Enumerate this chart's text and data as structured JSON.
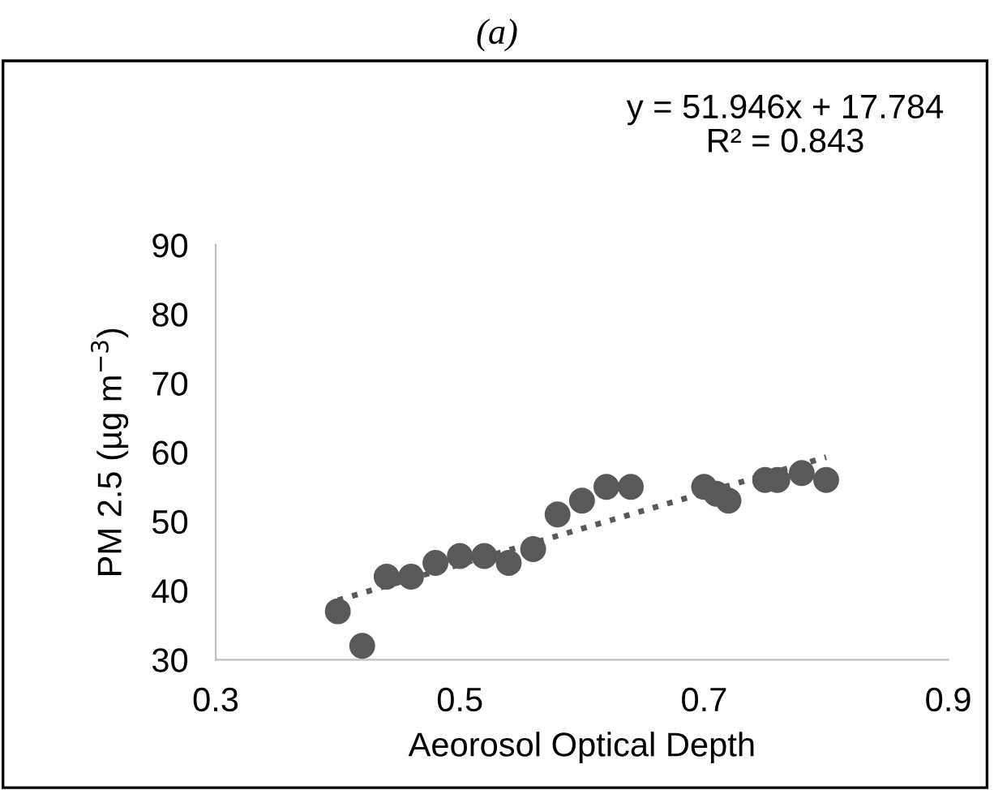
{
  "chart_data": {
    "type": "scatter",
    "title": "(a)",
    "xlabel": "Aeorosol Optical Depth",
    "ylabel": "PM 2.5 (µg m$^{−3}$)",
    "annotations": [
      "y = 51.946x + 17.784\nR² = 0.843"
    ],
    "series": [
      {
        "color": "#595959",
        "marker": "circle",
        "x": [
          0.4,
          0.42,
          0.44,
          0.46,
          0.48,
          0.5,
          0.52,
          0.54,
          0.56,
          0.58,
          0.6,
          0.62,
          0.64,
          0.7,
          0.71,
          0.72,
          0.75,
          0.76,
          0.78,
          0.8
        ],
        "values": [
          37,
          32,
          42,
          42,
          44,
          45,
          45,
          44,
          46,
          51,
          53,
          55,
          55,
          55,
          54,
          53,
          56,
          56,
          57,
          56
        ]
      },
      {
        "type": "line",
        "color": "#595959",
        "line_style": "dotted",
        "x": [
          0.4,
          0.8
        ],
        "values": [
          38.6,
          59.3
        ]
      }
    ],
    "xlim": [
      0.3,
      0.9
    ],
    "xticks": [
      0.3,
      0.5,
      0.7,
      0.9
    ],
    "ylim": [
      30,
      90
    ],
    "yticks": [
      30,
      40,
      50,
      60,
      70,
      80,
      90
    ],
    "grid": false,
    "legend": false
  }
}
